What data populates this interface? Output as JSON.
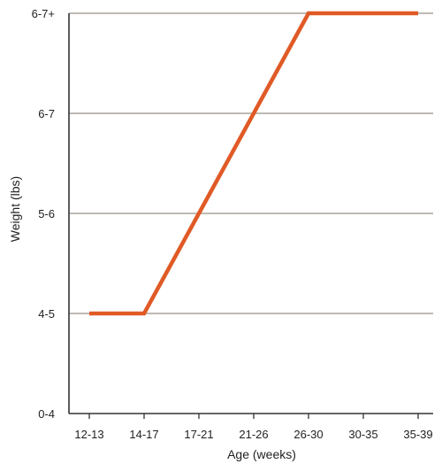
{
  "chart_data": {
    "type": "line",
    "title": "",
    "xlabel": "Age (weeks)",
    "ylabel": "Weight (lbs)",
    "categories": [
      "12-13",
      "14-17",
      "17-21",
      "21-26",
      "26-30",
      "30-35",
      "35-39"
    ],
    "y_categories": [
      "0-4",
      "4-5",
      "5-6",
      "6-7",
      "6-7+"
    ],
    "series": [
      {
        "values": [
          "4-5",
          "4-5",
          "5-6",
          "6-7",
          "6-7+",
          "6-7+",
          "6-7+"
        ]
      }
    ],
    "grid": "horizontal",
    "legend": "none",
    "colors": {
      "line": "#e05a26",
      "grid": "#a8a39a",
      "axis": "#333333"
    }
  }
}
